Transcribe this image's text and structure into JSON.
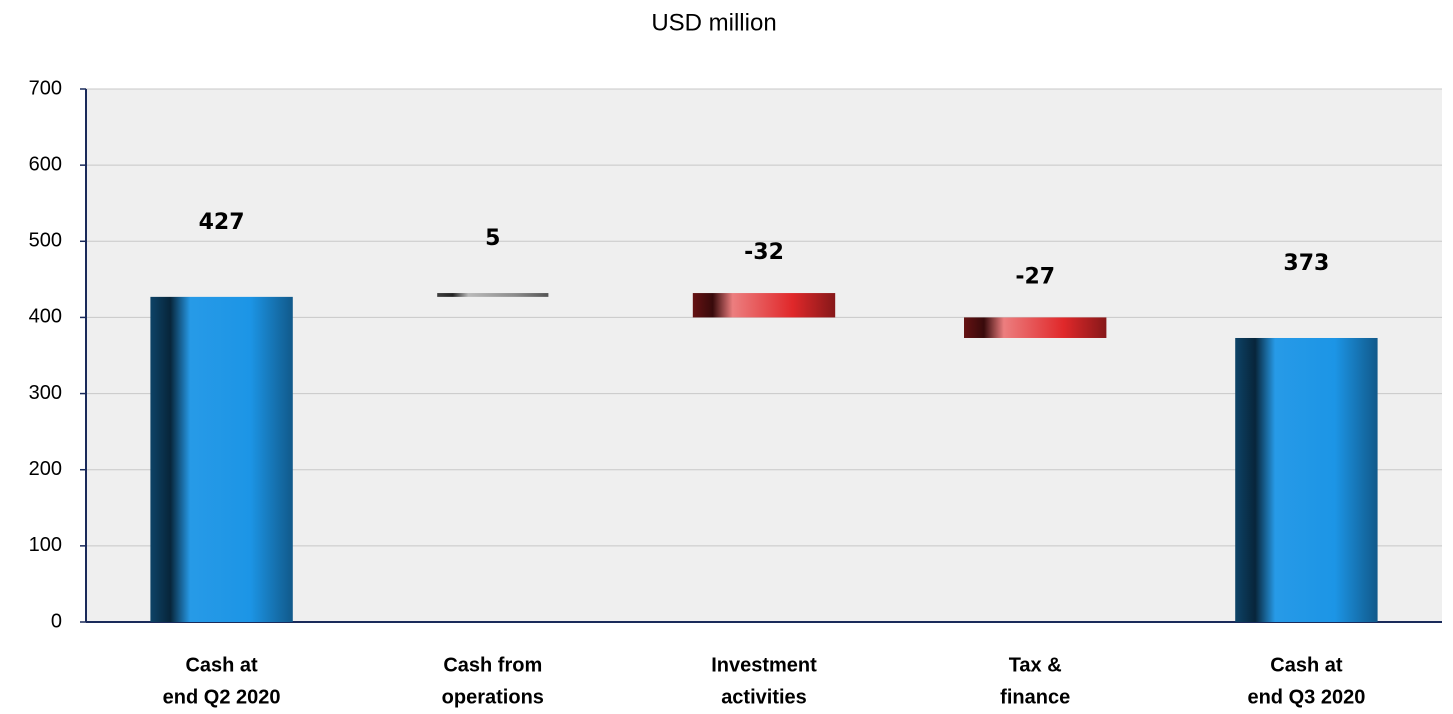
{
  "chart_data": {
    "type": "waterfall",
    "title": "USD million",
    "categories": [
      [
        "Cash at",
        "end Q2 2020"
      ],
      [
        "Cash from",
        "operations"
      ],
      [
        "Investment",
        "activities"
      ],
      [
        "Tax &",
        "finance"
      ],
      [
        "Cash at",
        "end Q3 2020"
      ]
    ],
    "values": [
      427,
      5,
      -32,
      -27,
      373
    ],
    "measure": [
      "absolute",
      "relative",
      "relative",
      "relative",
      "total"
    ],
    "colors": {
      "total": "#1c95e6",
      "increase": "#8c8c8c",
      "decrease": "#e0282a"
    },
    "ylim": [
      0,
      700
    ],
    "yticks": [
      0,
      100,
      200,
      300,
      400,
      500,
      600,
      700
    ],
    "grid": true
  }
}
